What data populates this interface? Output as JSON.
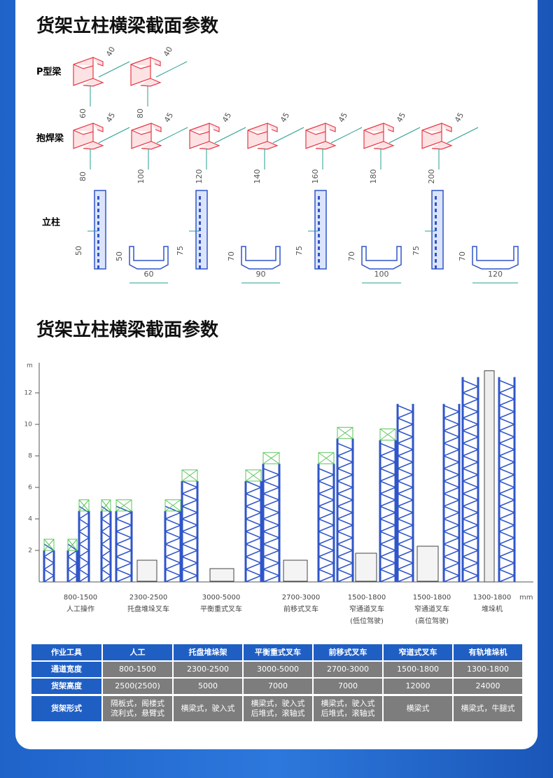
{
  "section1": {
    "title": "货架立柱横梁截面参数",
    "p_beam": {
      "label": "P型梁",
      "items": [
        {
          "depth": "40",
          "height": "60"
        },
        {
          "depth": "40",
          "height": "80"
        }
      ]
    },
    "weld_beam": {
      "label": "抱焊梁",
      "items": [
        {
          "depth": "45",
          "height": "80"
        },
        {
          "depth": "45",
          "height": "100"
        },
        {
          "depth": "45",
          "height": "120"
        },
        {
          "depth": "45",
          "height": "140"
        },
        {
          "depth": "45",
          "height": "160"
        },
        {
          "depth": "45",
          "height": "180"
        },
        {
          "depth": "45",
          "height": "200"
        }
      ]
    },
    "column": {
      "label": "立柱",
      "items": [
        {
          "face": "50",
          "depth": "50",
          "width": "60"
        },
        {
          "face": "75",
          "depth": "70",
          "width": "90"
        },
        {
          "face": "75",
          "depth": "70",
          "width": "100"
        },
        {
          "face": "75",
          "depth": "70",
          "width": "120"
        }
      ]
    }
  },
  "section2": {
    "title": "货架立柱横梁截面参数",
    "axis": {
      "unit": "m",
      "ticks": [
        2,
        4,
        6,
        8,
        10,
        12
      ]
    },
    "x_unit": "mm",
    "groups": [
      {
        "range": "800-1500",
        "name": "人工操作"
      },
      {
        "range": "2300-2500",
        "name": "托盘堆垛叉车"
      },
      {
        "range": "3000-5000",
        "name": "平衡重式叉车"
      },
      {
        "range": "2700-3000",
        "name": "前移式叉车"
      },
      {
        "range": "1500-1800",
        "name": "窄通道叉车",
        "note": "(低位驾驶)"
      },
      {
        "range": "1500-1800",
        "name": "窄通道叉车",
        "note": "(高位驾驶)"
      },
      {
        "range": "1300-1800",
        "name": "堆垛机"
      }
    ]
  },
  "table": {
    "header": [
      "作业工具",
      "人工",
      "托盘堆垛架",
      "平衡重式叉车",
      "前移式叉车",
      "窄道式叉车",
      "有轨堆垛机"
    ],
    "rows": [
      [
        "通道宽度",
        "800-1500",
        "2300-2500",
        "3000-5000",
        "2700-3000",
        "1500-1800",
        "1300-1800"
      ],
      [
        "货架高度",
        "2500(2500)",
        "5000",
        "7000",
        "7000",
        "12000",
        "24000"
      ],
      [
        "货架形式",
        [
          "隔板式，阁楼式",
          "流利式，悬臂式"
        ],
        "横梁式，驶入式",
        [
          "横梁式，驶入式",
          "后堆式，滚轴式"
        ],
        [
          "横梁式，驶入式",
          "后堆式，滚轴式"
        ],
        "横梁式",
        "横梁式，牛腿式"
      ]
    ]
  }
}
